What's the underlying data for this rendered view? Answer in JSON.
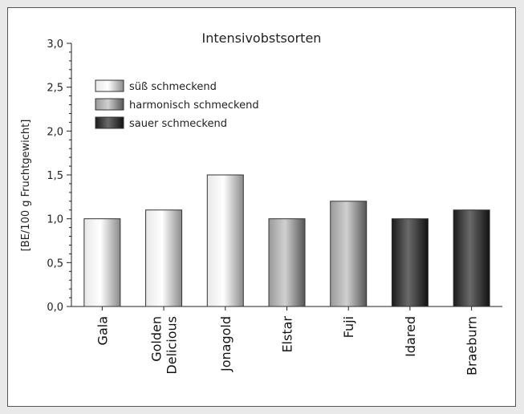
{
  "chart_data": {
    "type": "bar",
    "title": "Intensivobstsorten",
    "xlabel": "",
    "ylabel": "[BE/100 g Fruchtgewicht]",
    "ylim": [
      0,
      3.0
    ],
    "yticks": [
      "0,0",
      "0,5",
      "1,0",
      "1,5",
      "2,0",
      "2,5",
      "3,0"
    ],
    "categories": [
      "Gala",
      "Golden Delicious",
      "Jonagold",
      "Elstar",
      "Fuji",
      "Idared",
      "Braeburn"
    ],
    "category_lines": [
      [
        "Gala"
      ],
      [
        "Golden",
        "Delicious"
      ],
      [
        "Jonagold"
      ],
      [
        "Elstar"
      ],
      [
        "Fuji"
      ],
      [
        "Idared"
      ],
      [
        "Braeburn"
      ]
    ],
    "values": [
      1.0,
      1.1,
      1.5,
      1.0,
      1.2,
      1.0,
      1.1
    ],
    "groups": [
      "süß",
      "süß",
      "süß",
      "harmonisch",
      "harmonisch",
      "sauer",
      "sauer"
    ],
    "legend": [
      {
        "key": "süß",
        "label": "süß schmeckend",
        "colors": [
          "#e8e8e8",
          "#ffffff",
          "#8a8a8a"
        ]
      },
      {
        "key": "harmonisch",
        "label": "harmonisch schmeckend",
        "colors": [
          "#9a9a9a",
          "#d0d0d0",
          "#555555"
        ]
      },
      {
        "key": "sauer",
        "label": "sauer schmeckend",
        "colors": [
          "#1a1a1a",
          "#6a6a6a",
          "#111111"
        ]
      }
    ],
    "legend_position": "top-left",
    "grid": false
  }
}
